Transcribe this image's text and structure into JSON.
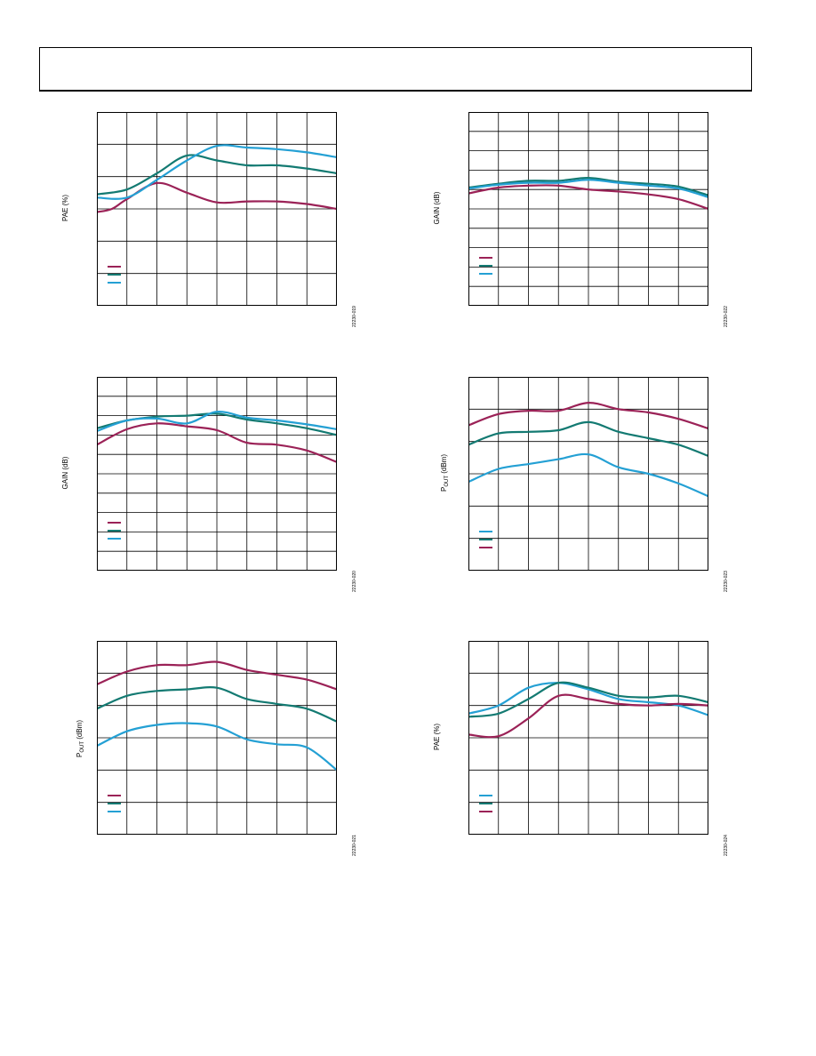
{
  "chart_data": [
    {
      "type": "line",
      "ylabel": "PAE (%)",
      "figure_id": "22230-019",
      "grid": true,
      "x_divisions": 8,
      "y_divisions": 6,
      "legend": "bottom-left",
      "series": [
        {
          "color": "#9b2257",
          "values": [
            [
              0,
              2.9
            ],
            [
              0.5,
              3.0
            ],
            [
              1,
              3.3
            ],
            [
              2,
              3.8
            ],
            [
              3,
              3.5
            ],
            [
              4,
              3.2
            ],
            [
              5,
              3.23
            ],
            [
              6,
              3.23
            ],
            [
              7,
              3.15
            ],
            [
              8,
              3.0
            ]
          ]
        },
        {
          "color": "#137a72",
          "values": [
            [
              0,
              3.45
            ],
            [
              1,
              3.6
            ],
            [
              2,
              4.1
            ],
            [
              3,
              4.65
            ],
            [
              4,
              4.5
            ],
            [
              5,
              4.35
            ],
            [
              6,
              4.35
            ],
            [
              7,
              4.25
            ],
            [
              8,
              4.1
            ]
          ]
        },
        {
          "color": "#24a0d4",
          "values": [
            [
              0,
              3.35
            ],
            [
              1,
              3.35
            ],
            [
              2,
              3.9
            ],
            [
              3,
              4.5
            ],
            [
              4,
              4.95
            ],
            [
              5,
              4.9
            ],
            [
              6,
              4.85
            ],
            [
              7,
              4.75
            ],
            [
              8,
              4.6
            ]
          ]
        }
      ]
    },
    {
      "type": "line",
      "ylabel": "GAIN (dB)",
      "figure_id": "22230-022",
      "grid": true,
      "x_divisions": 8,
      "y_divisions": 10,
      "legend": "bottom-left",
      "series": [
        {
          "color": "#9b2257",
          "values": [
            [
              0,
              5.8
            ],
            [
              1,
              6.1
            ],
            [
              2,
              6.2
            ],
            [
              3,
              6.2
            ],
            [
              4,
              6.0
            ],
            [
              5,
              5.9
            ],
            [
              6,
              5.75
            ],
            [
              7,
              5.5
            ],
            [
              8,
              5.0
            ]
          ]
        },
        {
          "color": "#137a72",
          "values": [
            [
              0,
              6.1
            ],
            [
              1,
              6.3
            ],
            [
              2,
              6.45
            ],
            [
              3,
              6.45
            ],
            [
              4,
              6.6
            ],
            [
              5,
              6.4
            ],
            [
              6,
              6.3
            ],
            [
              7,
              6.15
            ],
            [
              8,
              5.7
            ]
          ]
        },
        {
          "color": "#24a0d4",
          "values": [
            [
              0,
              6.05
            ],
            [
              1,
              6.25
            ],
            [
              2,
              6.35
            ],
            [
              3,
              6.35
            ],
            [
              4,
              6.5
            ],
            [
              5,
              6.35
            ],
            [
              6,
              6.2
            ],
            [
              7,
              6.05
            ],
            [
              8,
              5.6
            ]
          ]
        }
      ]
    },
    {
      "type": "line",
      "ylabel": "GAIN (dB)",
      "figure_id": "22230-020",
      "grid": true,
      "x_divisions": 8,
      "y_divisions": 10,
      "legend": "bottom-left",
      "series": [
        {
          "color": "#9b2257",
          "values": [
            [
              0,
              6.5
            ],
            [
              1,
              7.3
            ],
            [
              2,
              7.6
            ],
            [
              3,
              7.45
            ],
            [
              4,
              7.25
            ],
            [
              5,
              6.6
            ],
            [
              6,
              6.5
            ],
            [
              7,
              6.2
            ],
            [
              8,
              5.6
            ]
          ]
        },
        {
          "color": "#137a72",
          "values": [
            [
              0,
              7.35
            ],
            [
              1,
              7.75
            ],
            [
              2,
              7.95
            ],
            [
              3,
              8.0
            ],
            [
              4,
              8.1
            ],
            [
              5,
              7.8
            ],
            [
              6,
              7.6
            ],
            [
              7,
              7.35
            ],
            [
              8,
              7.0
            ]
          ]
        },
        {
          "color": "#24a0d4",
          "values": [
            [
              0,
              7.2
            ],
            [
              1,
              7.75
            ],
            [
              2,
              7.85
            ],
            [
              3,
              7.6
            ],
            [
              4,
              8.2
            ],
            [
              5,
              7.9
            ],
            [
              6,
              7.75
            ],
            [
              7,
              7.55
            ],
            [
              8,
              7.3
            ]
          ]
        }
      ]
    },
    {
      "type": "line",
      "ylabel": "POUT (dBm)",
      "ylabel_main": "P",
      "ylabel_sub": "OUT",
      "ylabel_rest": " (dBm)",
      "figure_id": "22230-023",
      "grid": true,
      "x_divisions": 8,
      "y_divisions": 6,
      "legend": "bottom-left",
      "series": [
        {
          "color": "#24a0d4",
          "values": [
            [
              0,
              2.75
            ],
            [
              1,
              3.15
            ],
            [
              2,
              3.3
            ],
            [
              3,
              3.45
            ],
            [
              4,
              3.6
            ],
            [
              5,
              3.2
            ],
            [
              6,
              3.0
            ],
            [
              7,
              2.7
            ],
            [
              8,
              2.3
            ]
          ]
        },
        {
          "color": "#137a72",
          "values": [
            [
              0,
              3.9
            ],
            [
              1,
              4.25
            ],
            [
              2,
              4.3
            ],
            [
              3,
              4.35
            ],
            [
              4,
              4.6
            ],
            [
              5,
              4.3
            ],
            [
              6,
              4.1
            ],
            [
              7,
              3.9
            ],
            [
              8,
              3.55
            ]
          ]
        },
        {
          "color": "#9b2257",
          "values": [
            [
              0,
              4.5
            ],
            [
              1,
              4.85
            ],
            [
              2,
              4.95
            ],
            [
              3,
              4.95
            ],
            [
              4,
              5.2
            ],
            [
              5,
              5.0
            ],
            [
              6,
              4.9
            ],
            [
              7,
              4.7
            ],
            [
              8,
              4.4
            ]
          ]
        }
      ]
    },
    {
      "type": "line",
      "ylabel": "POUT (dBm)",
      "ylabel_main": "P",
      "ylabel_sub": "OUT",
      "ylabel_rest": " (dBm)",
      "figure_id": "22230-021",
      "grid": true,
      "x_divisions": 8,
      "y_divisions": 6,
      "legend": "bottom-left",
      "series": [
        {
          "color": "#9b2257",
          "values": [
            [
              0,
              4.65
            ],
            [
              1,
              5.05
            ],
            [
              2,
              5.25
            ],
            [
              3,
              5.25
            ],
            [
              4,
              5.35
            ],
            [
              5,
              5.1
            ],
            [
              6,
              4.95
            ],
            [
              7,
              4.8
            ],
            [
              8,
              4.5
            ]
          ]
        },
        {
          "color": "#137a72",
          "values": [
            [
              0,
              3.9
            ],
            [
              1,
              4.3
            ],
            [
              2,
              4.45
            ],
            [
              3,
              4.5
            ],
            [
              4,
              4.55
            ],
            [
              5,
              4.2
            ],
            [
              6,
              4.05
            ],
            [
              7,
              3.9
            ],
            [
              8,
              3.5
            ]
          ]
        },
        {
          "color": "#24a0d4",
          "values": [
            [
              0,
              2.75
            ],
            [
              1,
              3.2
            ],
            [
              2,
              3.4
            ],
            [
              3,
              3.45
            ],
            [
              4,
              3.35
            ],
            [
              5,
              2.95
            ],
            [
              6,
              2.8
            ],
            [
              7,
              2.7
            ],
            [
              8,
              2.0
            ]
          ]
        }
      ]
    },
    {
      "type": "line",
      "ylabel": "PAE (%)",
      "figure_id": "22230-024",
      "grid": true,
      "x_divisions": 8,
      "y_divisions": 6,
      "legend": "bottom-left",
      "series": [
        {
          "color": "#24a0d4",
          "values": [
            [
              0,
              3.75
            ],
            [
              1,
              4.0
            ],
            [
              2,
              4.55
            ],
            [
              3,
              4.7
            ],
            [
              4,
              4.5
            ],
            [
              5,
              4.2
            ],
            [
              6,
              4.1
            ],
            [
              7,
              4.0
            ],
            [
              8,
              3.7
            ]
          ]
        },
        {
          "color": "#137a72",
          "values": [
            [
              0,
              3.65
            ],
            [
              1,
              3.75
            ],
            [
              2,
              4.2
            ],
            [
              3,
              4.7
            ],
            [
              4,
              4.55
            ],
            [
              5,
              4.3
            ],
            [
              6,
              4.25
            ],
            [
              7,
              4.3
            ],
            [
              8,
              4.1
            ]
          ]
        },
        {
          "color": "#9b2257",
          "values": [
            [
              0,
              3.1
            ],
            [
              1,
              3.05
            ],
            [
              2,
              3.6
            ],
            [
              3,
              4.3
            ],
            [
              4,
              4.2
            ],
            [
              5,
              4.05
            ],
            [
              6,
              4.0
            ],
            [
              7,
              4.05
            ],
            [
              8,
              4.0
            ]
          ]
        }
      ]
    }
  ]
}
